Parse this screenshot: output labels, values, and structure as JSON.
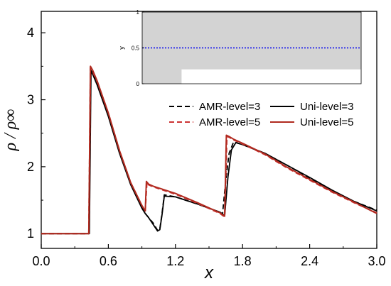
{
  "chart_data": [
    {
      "type": "line",
      "xlabel": "x",
      "ylabel": "ρ / ρ∞",
      "xlim": [
        0.0,
        3.0
      ],
      "ylim": [
        0.78,
        4.32
      ],
      "x_ticks": [
        "0.0",
        "0.6",
        "1.2",
        "1.8",
        "2.4",
        "3.0"
      ],
      "y_ticks": [
        "1",
        "2",
        "3",
        "4"
      ],
      "legend_position": "upper-right",
      "series": [
        {
          "name": "AMR-level=3",
          "color": "#000000",
          "style": "dashed",
          "x": [
            0.0,
            0.428,
            0.44,
            0.46,
            0.5,
            0.6,
            0.7,
            0.8,
            0.9,
            0.93,
            0.94,
            1.0,
            1.04,
            1.06,
            1.08,
            1.1,
            1.2,
            1.4,
            1.6,
            1.62,
            1.65,
            1.68,
            1.72,
            1.8,
            2.0,
            2.2,
            2.4,
            2.6,
            2.8,
            3.0
          ],
          "y": [
            1.0,
            1.0,
            3.45,
            3.4,
            3.25,
            2.78,
            2.22,
            1.75,
            1.4,
            1.33,
            1.28,
            1.16,
            1.05,
            1.07,
            1.3,
            1.58,
            1.55,
            1.44,
            1.32,
            1.28,
            1.8,
            2.2,
            2.37,
            2.33,
            2.2,
            2.02,
            1.83,
            1.64,
            1.48,
            1.35
          ]
        },
        {
          "name": "Uni-level=3",
          "color": "#000000",
          "style": "solid",
          "x": [
            0.0,
            0.43,
            0.445,
            0.46,
            0.5,
            0.6,
            0.7,
            0.8,
            0.9,
            0.93,
            0.96,
            1.0,
            1.04,
            1.06,
            1.08,
            1.1,
            1.2,
            1.4,
            1.6,
            1.64,
            1.67,
            1.7,
            1.74,
            1.8,
            2.0,
            2.2,
            2.4,
            2.6,
            2.8,
            3.0
          ],
          "y": [
            1.0,
            1.0,
            3.42,
            3.38,
            3.22,
            2.75,
            2.2,
            1.73,
            1.38,
            1.3,
            1.24,
            1.14,
            1.04,
            1.06,
            1.28,
            1.56,
            1.55,
            1.44,
            1.32,
            1.27,
            1.85,
            2.25,
            2.36,
            2.33,
            2.2,
            2.02,
            1.84,
            1.65,
            1.48,
            1.34
          ]
        },
        {
          "name": "AMR-level=5",
          "color": "#cc3333",
          "style": "dashed",
          "x": [
            0.0,
            0.425,
            0.44,
            0.46,
            0.5,
            0.6,
            0.7,
            0.8,
            0.9,
            0.93,
            0.945,
            0.96,
            1.0,
            1.2,
            1.4,
            1.6,
            1.64,
            1.66,
            1.68,
            1.72,
            1.8,
            2.0,
            2.2,
            2.4,
            2.6,
            2.8,
            3.0
          ],
          "y": [
            1.0,
            1.0,
            3.48,
            3.42,
            3.27,
            2.8,
            2.24,
            1.76,
            1.42,
            1.34,
            1.77,
            1.73,
            1.7,
            1.59,
            1.45,
            1.3,
            1.25,
            2.45,
            2.44,
            2.4,
            2.34,
            2.18,
            1.98,
            1.8,
            1.62,
            1.46,
            1.31
          ]
        },
        {
          "name": "Uni-level=5",
          "color": "#b02a1f",
          "style": "solid",
          "x": [
            0.0,
            0.425,
            0.44,
            0.46,
            0.5,
            0.6,
            0.7,
            0.8,
            0.9,
            0.93,
            0.94,
            0.96,
            1.0,
            1.2,
            1.4,
            1.6,
            1.64,
            1.655,
            1.68,
            1.72,
            1.8,
            2.0,
            2.2,
            2.4,
            2.6,
            2.8,
            3.0
          ],
          "y": [
            1.0,
            1.0,
            3.5,
            3.44,
            3.28,
            2.8,
            2.24,
            1.76,
            1.42,
            1.34,
            1.78,
            1.74,
            1.71,
            1.6,
            1.46,
            1.31,
            1.26,
            2.47,
            2.45,
            2.41,
            2.35,
            2.19,
            1.99,
            1.81,
            1.63,
            1.47,
            1.3
          ]
        }
      ]
    },
    {
      "type": "area",
      "ylabel": "y",
      "ylim": [
        0,
        1
      ],
      "y_ticks": [
        "0",
        "0.5",
        "1"
      ],
      "gray_color": "#d3d3d3",
      "line_color": "#0000ee",
      "line_y": 0.5,
      "region": [
        [
          0,
          0
        ],
        [
          0.18,
          0
        ],
        [
          0.18,
          0.2
        ],
        [
          1,
          0.2
        ],
        [
          1,
          1
        ],
        [
          0,
          1
        ]
      ]
    }
  ]
}
